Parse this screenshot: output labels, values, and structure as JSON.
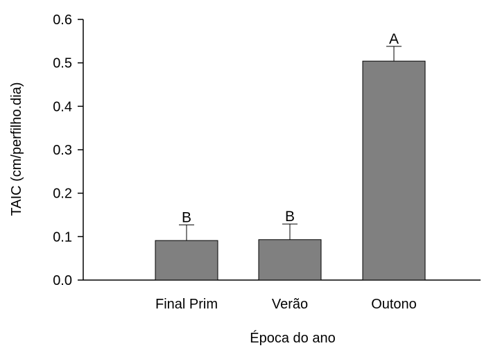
{
  "chart_data": {
    "type": "bar",
    "categories": [
      "Final Prim",
      "Verão",
      "Outono"
    ],
    "values": [
      0.091,
      0.093,
      0.504
    ],
    "error_upper": [
      0.127,
      0.129,
      0.538
    ],
    "annotations": [
      "B",
      "B",
      "A"
    ],
    "xlabel": "Época do ano",
    "ylabel": "TAIC (cm/perfilho.dia)",
    "ylim": [
      0,
      0.6
    ],
    "yticks": [
      0.0,
      0.1,
      0.2,
      0.3,
      0.4,
      0.5,
      0.6
    ],
    "ytick_labels": [
      "0.0",
      "0.1",
      "0.2",
      "0.3",
      "0.4",
      "0.5",
      "0.6"
    ],
    "grid": false,
    "bar_color": "#808080",
    "bar_edge_color": "#000000"
  }
}
